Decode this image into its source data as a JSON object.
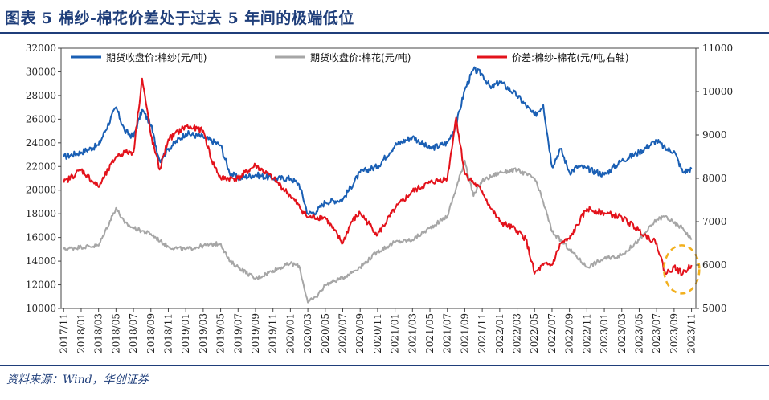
{
  "title": "图表 5  棉纱-棉花价差处于过去 5 年间的极端低位",
  "source": "资料来源：Wind，华创证券",
  "colors": {
    "yarn": "#1a5fb4",
    "cotton": "#a6a6a6",
    "spread": "#e3121b",
    "header": "#1f3e7a",
    "highlight": "#f2b01e"
  },
  "chart_data": {
    "type": "line",
    "x_tick_labels": [
      "2017/11",
      "2018/01",
      "2018/03",
      "2018/05",
      "2018/07",
      "2018/09",
      "2018/11",
      "2019/01",
      "2019/03",
      "2019/05",
      "2019/07",
      "2019/09",
      "2019/11",
      "2020/01",
      "2020/03",
      "2020/05",
      "2020/07",
      "2020/09",
      "2020/11",
      "2021/01",
      "2021/03",
      "2021/05",
      "2021/07",
      "2021/09",
      "2021/11",
      "2022/01",
      "2022/03",
      "2022/05",
      "2022/07",
      "2022/09",
      "2022/11",
      "2023/01",
      "2023/03",
      "2023/05",
      "2023/07",
      "2023/09",
      "2023/11"
    ],
    "y_left": {
      "min": 10000,
      "max": 32000,
      "ticks": [
        "10000",
        "12000",
        "14000",
        "16000",
        "18000",
        "20000",
        "22000",
        "24000",
        "26000",
        "28000",
        "30000",
        "32000"
      ]
    },
    "y_right": {
      "min": 5000,
      "max": 11000,
      "ticks": [
        "5000",
        "6000",
        "7000",
        "8000",
        "9000",
        "10000",
        "11000"
      ]
    },
    "legend_position": "top",
    "series": [
      {
        "name": "期货收盘价:棉纱(元/吨)",
        "axis": "left",
        "color_key": "yarn",
        "x": [
          "2017/11",
          "2018/01",
          "2018/03",
          "2018/05",
          "2018/06",
          "2018/07",
          "2018/08",
          "2018/09",
          "2018/10",
          "2018/11",
          "2019/01",
          "2019/03",
          "2019/05",
          "2019/06",
          "2019/07",
          "2019/09",
          "2019/11",
          "2020/01",
          "2020/02",
          "2020/03",
          "2020/04",
          "2020/05",
          "2020/07",
          "2020/09",
          "2020/11",
          "2021/01",
          "2021/03",
          "2021/05",
          "2021/07",
          "2021/08",
          "2021/09",
          "2021/10",
          "2021/11",
          "2021/12",
          "2022/01",
          "2022/03",
          "2022/05",
          "2022/06",
          "2022/07",
          "2022/08",
          "2022/09",
          "2022/10",
          "2022/11",
          "2023/01",
          "2023/03",
          "2023/05",
          "2023/07",
          "2023/08",
          "2023/09",
          "2023/10",
          "2023/11"
        ],
        "values": [
          22800,
          23200,
          23800,
          27000,
          25000,
          24500,
          26800,
          25500,
          22500,
          23500,
          24800,
          24500,
          23800,
          21500,
          21000,
          21300,
          21000,
          21000,
          20500,
          18000,
          18200,
          19000,
          19200,
          21500,
          22000,
          23800,
          24500,
          23500,
          24000,
          25500,
          28500,
          30200,
          29800,
          28600,
          29200,
          28000,
          26300,
          27200,
          22000,
          23500,
          21500,
          22000,
          21800,
          21300,
          22500,
          23200,
          24200,
          23500,
          23300,
          21500,
          21800
        ]
      },
      {
        "name": "期货收盘价:棉花(元/吨)",
        "axis": "left",
        "color_key": "cotton",
        "x": [
          "2017/11",
          "2018/01",
          "2018/03",
          "2018/05",
          "2018/06",
          "2018/07",
          "2018/09",
          "2018/11",
          "2019/01",
          "2019/03",
          "2019/05",
          "2019/06",
          "2019/07",
          "2019/09",
          "2019/11",
          "2020/01",
          "2020/02",
          "2020/03",
          "2020/04",
          "2020/05",
          "2020/07",
          "2020/09",
          "2020/11",
          "2021/01",
          "2021/03",
          "2021/05",
          "2021/07",
          "2021/09",
          "2021/10",
          "2021/11",
          "2022/01",
          "2022/03",
          "2022/05",
          "2022/06",
          "2022/07",
          "2022/09",
          "2022/11",
          "2023/01",
          "2023/03",
          "2023/05",
          "2023/07",
          "2023/08",
          "2023/09",
          "2023/10",
          "2023/11"
        ],
        "values": [
          15000,
          15200,
          15300,
          18500,
          17200,
          16800,
          16300,
          15200,
          15000,
          15300,
          15500,
          14000,
          13500,
          12500,
          13200,
          13800,
          13600,
          10500,
          11000,
          12000,
          12600,
          13500,
          14800,
          15600,
          15800,
          16800,
          17800,
          22500,
          19500,
          20800,
          21500,
          21700,
          21000,
          19000,
          16500,
          15000,
          13500,
          14200,
          14500,
          15800,
          17500,
          17800,
          17200,
          16800,
          15800
        ]
      },
      {
        "name": "价差:棉纱-棉花(元/吨,右轴)",
        "axis": "right",
        "color_key": "spread",
        "x": [
          "2017/11",
          "2018/01",
          "2018/03",
          "2018/05",
          "2018/06",
          "2018/07",
          "2018/08",
          "2018/09",
          "2018/10",
          "2018/11",
          "2019/01",
          "2019/03",
          "2019/04",
          "2019/05",
          "2019/07",
          "2019/09",
          "2019/11",
          "2020/01",
          "2020/03",
          "2020/05",
          "2020/07",
          "2020/08",
          "2020/09",
          "2020/11",
          "2021/01",
          "2021/03",
          "2021/05",
          "2021/07",
          "2021/08",
          "2021/09",
          "2021/11",
          "2021/12",
          "2022/01",
          "2022/03",
          "2022/04",
          "2022/05",
          "2022/06",
          "2022/07",
          "2022/08",
          "2022/09",
          "2022/11",
          "2023/01",
          "2023/03",
          "2023/05",
          "2023/07",
          "2023/08",
          "2023/09",
          "2023/10",
          "2023/11"
        ],
        "values": [
          7900,
          8200,
          7800,
          8500,
          8600,
          8600,
          10300,
          9000,
          8200,
          8900,
          9200,
          9100,
          8400,
          8000,
          8000,
          8300,
          8000,
          7600,
          7100,
          7100,
          6500,
          7000,
          7200,
          6700,
          7300,
          7700,
          7900,
          8000,
          9400,
          8100,
          7700,
          7300,
          7000,
          6800,
          6600,
          5800,
          6000,
          6000,
          6500,
          6600,
          7300,
          7200,
          7100,
          6800,
          6500,
          5800,
          5950,
          5800,
          6000
        ]
      }
    ],
    "annotation": "dashed-circle"
  }
}
